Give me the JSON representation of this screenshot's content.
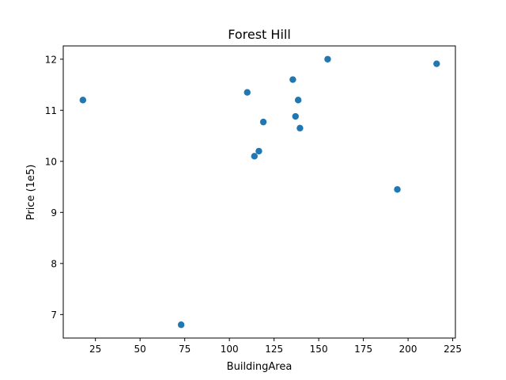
{
  "chart_data": {
    "type": "scatter",
    "title": "Forest Hill",
    "xlabel": "BuildingArea",
    "ylabel": "Price (1e5)",
    "xlim": [
      7.0,
      226.5
    ],
    "ylim": [
      6.54,
      12.26
    ],
    "xticks": [
      25,
      50,
      75,
      100,
      125,
      150,
      175,
      200,
      225
    ],
    "yticks": [
      7,
      8,
      9,
      10,
      11,
      12
    ],
    "grid": false,
    "marker_color": "#1f77b4",
    "series": [
      {
        "points": [
          {
            "x": 18,
            "y": 11.2
          },
          {
            "x": 73,
            "y": 6.8
          },
          {
            "x": 110,
            "y": 11.35
          },
          {
            "x": 114,
            "y": 10.1
          },
          {
            "x": 116.5,
            "y": 10.2
          },
          {
            "x": 119,
            "y": 10.77
          },
          {
            "x": 135.5,
            "y": 11.6
          },
          {
            "x": 137,
            "y": 10.88
          },
          {
            "x": 138.5,
            "y": 11.2
          },
          {
            "x": 139.5,
            "y": 10.65
          },
          {
            "x": 155,
            "y": 12.0
          },
          {
            "x": 194,
            "y": 9.45
          },
          {
            "x": 216,
            "y": 11.91
          }
        ]
      }
    ]
  }
}
